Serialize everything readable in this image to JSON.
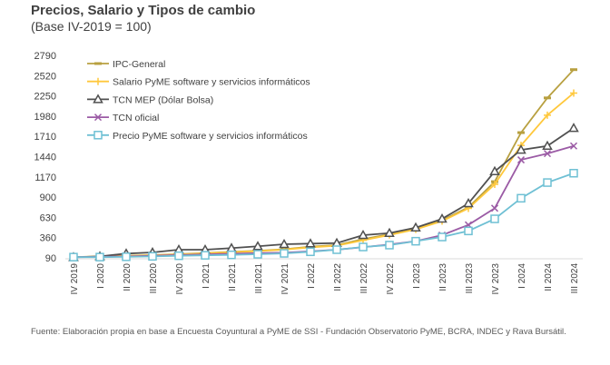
{
  "title": "Precios, Salario y Tipos de cambio",
  "subtitle": "(Base IV-2019 = 100)",
  "note": "Fuente: Elaboración propia en base a Encuesta Coyuntural a PyME de SSI - Fundación Observatorio PyME, BCRA, INDEC y Rava Bursátil.",
  "chart_data": {
    "type": "line",
    "title": "Precios, Salario y Tipos de cambio",
    "ylabel": "",
    "xlabel": "",
    "ylim": [
      90,
      2790
    ],
    "yticks": [
      90,
      360,
      630,
      900,
      1170,
      1440,
      1710,
      1980,
      2250,
      2520,
      2790
    ],
    "legend_position": "top-left",
    "categories": [
      "IV 2019",
      "I 2020",
      "II 2020",
      "III 2020",
      "IV 2020",
      "I 2021",
      "II 2021",
      "III 2021",
      "IV 2021",
      "I 2022",
      "II 2022",
      "III 2022",
      "IV 2022",
      "I 2023",
      "II 2023",
      "III 2023",
      "IV 2023",
      "I 2024",
      "II 2024",
      "III 2024"
    ],
    "series": [
      {
        "name": "IPC-General",
        "color": "#b8a040",
        "marker": "dash",
        "values": [
          100,
          110,
          118,
          128,
          140,
          155,
          170,
          185,
          205,
          239,
          260,
          340,
          405,
          480,
          590,
          764,
          1106,
          1760,
          2223,
          2600
        ]
      },
      {
        "name": "Salario PyME software y servicios informáticos",
        "color": "#ffc83c",
        "marker": "plus",
        "values": [
          100,
          108,
          115,
          125,
          135,
          150,
          165,
          180,
          200,
          230,
          252,
          325,
          395,
          470,
          580,
          750,
          1070,
          1590,
          1993,
          2288
        ]
      },
      {
        "name": "TCN MEP (Dólar Bolsa)",
        "color": "#505050",
        "marker": "triangle",
        "values": [
          98,
          110,
          147,
          163,
          199,
          199,
          220,
          244,
          272,
          280,
          287,
          393,
          420,
          493,
          610,
          816,
          1243,
          1530,
          1582,
          1820
        ]
      },
      {
        "name": "TCN oficial",
        "color": "#9b5ba5",
        "marker": "x",
        "values": [
          100,
          103,
          110,
          118,
          128,
          136,
          145,
          153,
          160,
          178,
          199,
          232,
          268,
          312,
          393,
          530,
          752,
          1397,
          1481,
          1582
        ]
      },
      {
        "name": "Precio PyME software y servicios informáticos",
        "color": "#6fc0d4",
        "marker": "square",
        "values": [
          100,
          100,
          104,
          110,
          118,
          124,
          130,
          138,
          150,
          171,
          199,
          235,
          260,
          312,
          368,
          449,
          610,
          885,
          1094,
          1219
        ]
      }
    ]
  }
}
